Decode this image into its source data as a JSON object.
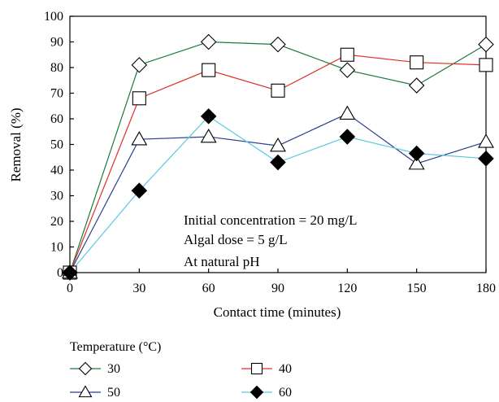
{
  "chart_data": {
    "type": "line",
    "title": "",
    "xlabel": "Contact time (minutes)",
    "ylabel": "Removal (%)",
    "xlim": [
      0,
      180
    ],
    "ylim": [
      0,
      100
    ],
    "x": [
      0,
      30,
      60,
      90,
      120,
      150,
      180
    ],
    "x_ticks": [
      "0",
      "30",
      "60",
      "90",
      "120",
      "150",
      "180"
    ],
    "y_ticks": [
      "0",
      "10",
      "20",
      "30",
      "40",
      "50",
      "60",
      "70",
      "80",
      "90",
      "100"
    ],
    "grid": false,
    "legend_title": "Temperature (°C)",
    "legend_placement": "bottom",
    "annotations": [
      "Initial concentration = 20 mg/L",
      "Algal dose = 5 g/L",
      "At natural pH"
    ],
    "series": [
      {
        "name": "30",
        "color": "#1a7a3a",
        "marker": "diamond-open",
        "values": [
          0,
          81,
          90,
          89,
          79,
          73,
          89
        ]
      },
      {
        "name": "40",
        "color": "#e0302a",
        "marker": "square-open",
        "values": [
          0,
          68,
          79,
          71,
          85,
          82,
          81
        ]
      },
      {
        "name": "50",
        "color": "#2a3f8f",
        "marker": "triangle-open",
        "values": [
          0,
          52,
          53,
          49.5,
          62,
          42.5,
          51
        ]
      },
      {
        "name": "60",
        "color": "#5ec8e0",
        "marker": "diamond-filled",
        "values": [
          0,
          32,
          61,
          43,
          53,
          46.5,
          44.5
        ]
      }
    ]
  }
}
